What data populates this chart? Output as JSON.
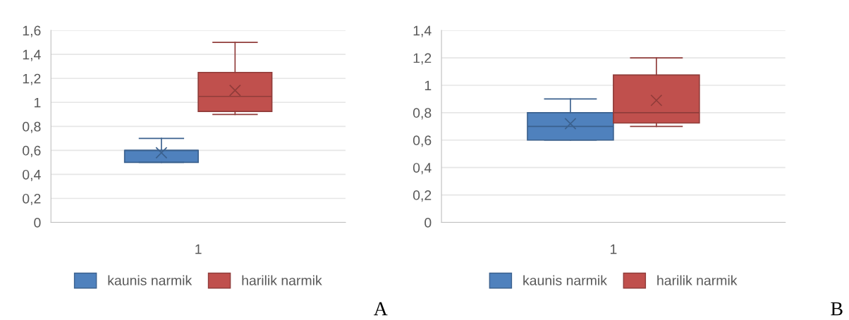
{
  "chart_data": [
    {
      "type": "box",
      "categories": [
        "1"
      ],
      "ylim": [
        0,
        1.6
      ],
      "yticks": [
        {
          "value": 0,
          "label": "0"
        },
        {
          "value": 0.2,
          "label": "0,2"
        },
        {
          "value": 0.4,
          "label": "0,4"
        },
        {
          "value": 0.6,
          "label": "0,6"
        },
        {
          "value": 0.8,
          "label": "0,8"
        },
        {
          "value": 1,
          "label": "1"
        },
        {
          "value": 1.2,
          "label": "1,2"
        },
        {
          "value": 1.4,
          "label": "1,4"
        },
        {
          "value": 1.6,
          "label": "1,6"
        }
      ],
      "grid": "y",
      "legend": "bottom",
      "annotations": [
        "A"
      ],
      "series": [
        {
          "name": "kaunis narmik",
          "color": "#4f81bd",
          "boxes": [
            {
              "low": 0.5,
              "q1": 0.5,
              "median": 0.6,
              "q3": 0.6,
              "high": 0.7,
              "mean": 0.58
            }
          ]
        },
        {
          "name": "harilik narmik",
          "color": "#c0504d",
          "boxes": [
            {
              "low": 0.9,
              "q1": 0.925,
              "median": 1.05,
              "q3": 1.25,
              "high": 1.5,
              "mean": 1.1
            }
          ]
        }
      ]
    },
    {
      "type": "box",
      "categories": [
        "1"
      ],
      "ylim": [
        0,
        1.4
      ],
      "yticks": [
        {
          "value": 0,
          "label": "0"
        },
        {
          "value": 0.2,
          "label": "0,2"
        },
        {
          "value": 0.4,
          "label": "0,4"
        },
        {
          "value": 0.6,
          "label": "0,6"
        },
        {
          "value": 0.8,
          "label": "0,8"
        },
        {
          "value": 1,
          "label": "1"
        },
        {
          "value": 1.2,
          "label": "1,2"
        },
        {
          "value": 1.4,
          "label": "1,4"
        }
      ],
      "grid": "y",
      "legend": "bottom",
      "annotations": [
        "B"
      ],
      "series": [
        {
          "name": "kaunis narmik",
          "color": "#4f81bd",
          "boxes": [
            {
              "low": 0.6,
              "q1": 0.6,
              "median": 0.7,
              "q3": 0.8,
              "high": 0.9,
              "mean": 0.72
            }
          ]
        },
        {
          "name": "harilik narmik",
          "color": "#c0504d",
          "boxes": [
            {
              "low": 0.7,
              "q1": 0.725,
              "median": 0.8,
              "q3": 1.075,
              "high": 1.2,
              "mean": 0.89
            }
          ]
        }
      ]
    }
  ]
}
